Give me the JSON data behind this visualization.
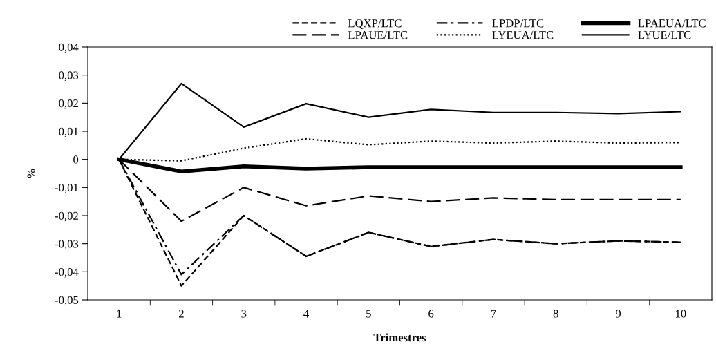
{
  "chart_data": {
    "type": "line",
    "xlabel": "Trimestres",
    "ylabel": "%",
    "categories": [
      "1",
      "2",
      "3",
      "4",
      "5",
      "6",
      "7",
      "8",
      "9",
      "10"
    ],
    "series": [
      {
        "name": "LQXP/LTC",
        "color": "#000000",
        "line_style": "dashed",
        "values": [
          0,
          -0.045,
          -0.02,
          -0.0345,
          -0.026,
          -0.031,
          -0.0285,
          -0.03,
          -0.029,
          -0.0295
        ]
      },
      {
        "name": "LPAUE/LTC",
        "color": "#000000",
        "line_style": "longdash",
        "values": [
          0,
          -0.022,
          -0.01,
          -0.0165,
          -0.013,
          -0.015,
          -0.0137,
          -0.0143,
          -0.0143,
          -0.0143
        ]
      },
      {
        "name": "LPDP/LTC",
        "color": "#000000",
        "line_style": "dashdot",
        "values": [
          0,
          -0.041,
          -0.02,
          -0.0345,
          -0.026,
          -0.031,
          -0.0285,
          -0.03,
          -0.029,
          -0.0295
        ]
      },
      {
        "name": "LYEUA/LTC",
        "color": "#000000",
        "line_style": "dotted",
        "values": [
          0,
          -0.0005,
          0.004,
          0.0073,
          0.0052,
          0.0065,
          0.0058,
          0.0065,
          0.0058,
          0.006
        ]
      },
      {
        "name": "LPAEUA/LTC",
        "color": "#000000",
        "line_style": "solid",
        "values": [
          0,
          -0.0043,
          -0.0025,
          -0.0033,
          -0.0028,
          -0.0028,
          -0.0028,
          -0.0028,
          -0.0028,
          -0.0028
        ]
      },
      {
        "name": "LYUE/LTC",
        "color": "#000000",
        "line_style": "solid",
        "values": [
          0,
          0.027,
          0.0115,
          0.0198,
          0.015,
          0.0178,
          0.0167,
          0.0167,
          0.0163,
          0.017
        ]
      }
    ],
    "ylim": [
      -0.05,
      0.04
    ],
    "yticks": [
      {
        "value": -0.05,
        "label": "-0,05"
      },
      {
        "value": -0.04,
        "label": "-0,04"
      },
      {
        "value": -0.03,
        "label": "-0,03"
      },
      {
        "value": -0.02,
        "label": "-0,02"
      },
      {
        "value": -0.01,
        "label": "-0,01"
      },
      {
        "value": 0,
        "label": "0"
      },
      {
        "value": 0.01,
        "label": "0,01"
      },
      {
        "value": 0.02,
        "label": "0,02"
      },
      {
        "value": 0.03,
        "label": "0,03"
      },
      {
        "value": 0.04,
        "label": "0,04"
      }
    ],
    "legend": "top right",
    "grid": false,
    "marker": "none"
  }
}
